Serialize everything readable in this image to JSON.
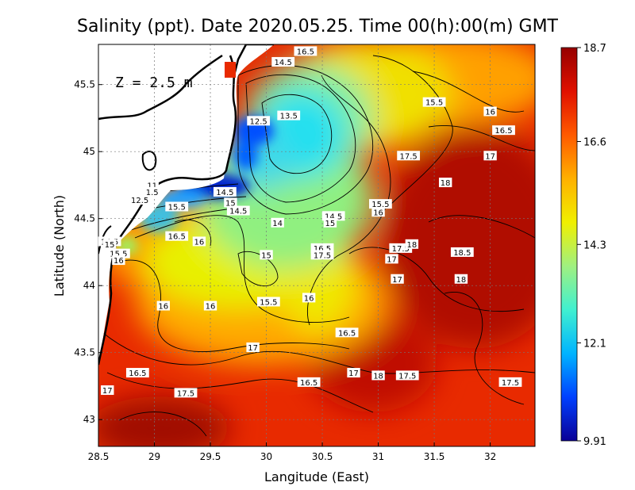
{
  "title": "Salinity (ppt). Date 2020.05.25. Time 00(h):00(m) GMT",
  "depth_label": "Z = 2.5 m",
  "x_axis": {
    "label": "Langitude (East)",
    "ticks": [
      "28.5",
      "29",
      "29.5",
      "30",
      "30.5",
      "31",
      "31.5",
      "32"
    ]
  },
  "y_axis": {
    "label": "Latitude (North)",
    "ticks": [
      "45.5",
      "45",
      "44.5",
      "44",
      "43.5",
      "43"
    ]
  },
  "colorbar": {
    "ticks": [
      "18.7",
      "16.6",
      "14.3",
      "12.1",
      "9.91"
    ],
    "min": 9.91,
    "max": 18.7,
    "colors": [
      "#0a0096",
      "#0040ff",
      "#00b4ff",
      "#40f0d0",
      "#a0f080",
      "#f0f000",
      "#ffb000",
      "#ff5a00",
      "#e01000",
      "#960000"
    ]
  },
  "contour_labels": [
    {
      "text": "16.5",
      "lon": 30.35,
      "lat": 45.75
    },
    {
      "text": "14.5",
      "lon": 30.15,
      "lat": 45.67
    },
    {
      "text": "15.5",
      "lon": 31.5,
      "lat": 45.37
    },
    {
      "text": "16",
      "lon": 32.0,
      "lat": 45.3
    },
    {
      "text": "16.5",
      "lon": 32.12,
      "lat": 45.16
    },
    {
      "text": "12.5",
      "lon": 29.93,
      "lat": 45.23
    },
    {
      "text": "13.5",
      "lon": 30.2,
      "lat": 45.27
    },
    {
      "text": "17.5",
      "lon": 31.27,
      "lat": 44.97
    },
    {
      "text": "17",
      "lon": 32.0,
      "lat": 44.97
    },
    {
      "text": "18",
      "lon": 31.6,
      "lat": 44.77
    },
    {
      "text": "11",
      "lon": 28.98,
      "lat": 44.75
    },
    {
      "text": "1.5",
      "lon": 28.98,
      "lat": 44.7
    },
    {
      "text": "14.5",
      "lon": 29.63,
      "lat": 44.7
    },
    {
      "text": "12.5",
      "lon": 28.87,
      "lat": 44.64
    },
    {
      "text": "15",
      "lon": 29.68,
      "lat": 44.62
    },
    {
      "text": "15.5",
      "lon": 29.2,
      "lat": 44.59
    },
    {
      "text": "15.5",
      "lon": 31.02,
      "lat": 44.61
    },
    {
      "text": "14.5",
      "lon": 29.75,
      "lat": 44.56
    },
    {
      "text": "16",
      "lon": 31.0,
      "lat": 44.55
    },
    {
      "text": "14.5",
      "lon": 30.6,
      "lat": 44.52
    },
    {
      "text": "15",
      "lon": 30.57,
      "lat": 44.47
    },
    {
      "text": "14",
      "lon": 30.1,
      "lat": 44.47
    },
    {
      "text": "16.5",
      "lon": 29.2,
      "lat": 44.37
    },
    {
      "text": "16",
      "lon": 29.4,
      "lat": 44.33
    },
    {
      "text": "14.5",
      "lon": 28.6,
      "lat": 44.33
    },
    {
      "text": "15",
      "lon": 28.6,
      "lat": 44.31
    },
    {
      "text": "15.5",
      "lon": 28.68,
      "lat": 44.24
    },
    {
      "text": "16",
      "lon": 28.68,
      "lat": 44.19
    },
    {
      "text": "15",
      "lon": 30.0,
      "lat": 44.23
    },
    {
      "text": "16.5",
      "lon": 30.5,
      "lat": 44.28
    },
    {
      "text": "17.5",
      "lon": 30.5,
      "lat": 44.23
    },
    {
      "text": "17.5",
      "lon": 31.2,
      "lat": 44.28
    },
    {
      "text": "18",
      "lon": 31.3,
      "lat": 44.31
    },
    {
      "text": "18.5",
      "lon": 31.75,
      "lat": 44.25
    },
    {
      "text": "17",
      "lon": 31.12,
      "lat": 44.2
    },
    {
      "text": "17",
      "lon": 31.17,
      "lat": 44.05
    },
    {
      "text": "18",
      "lon": 31.74,
      "lat": 44.05
    },
    {
      "text": "16",
      "lon": 29.08,
      "lat": 43.85
    },
    {
      "text": "16",
      "lon": 29.5,
      "lat": 43.85
    },
    {
      "text": "15.5",
      "lon": 30.02,
      "lat": 43.88
    },
    {
      "text": "16",
      "lon": 30.38,
      "lat": 43.91
    },
    {
      "text": "16.5",
      "lon": 30.72,
      "lat": 43.65
    },
    {
      "text": "17",
      "lon": 29.88,
      "lat": 43.54
    },
    {
      "text": "16.5",
      "lon": 28.85,
      "lat": 43.35
    },
    {
      "text": "17",
      "lon": 30.78,
      "lat": 43.35
    },
    {
      "text": "18",
      "lon": 31.0,
      "lat": 43.33
    },
    {
      "text": "17.5",
      "lon": 31.26,
      "lat": 43.33
    },
    {
      "text": "17.5",
      "lon": 32.18,
      "lat": 43.28
    },
    {
      "text": "16.5",
      "lon": 30.38,
      "lat": 43.28
    },
    {
      "text": "17",
      "lon": 28.58,
      "lat": 43.22
    },
    {
      "text": "17.5",
      "lon": 29.28,
      "lat": 43.2
    }
  ]
}
